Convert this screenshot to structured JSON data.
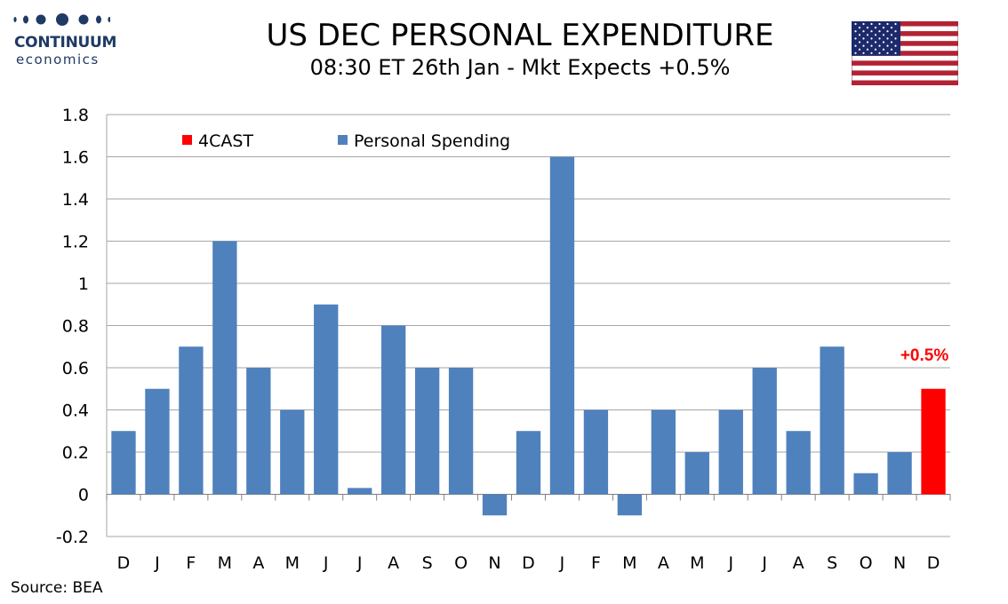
{
  "logo": {
    "name": "CONTINUUM",
    "sub": "economics"
  },
  "header": {
    "title": "US DEC PERSONAL EXPENDITURE",
    "subtitle": "08:30 ET 26th Jan - Mkt Expects +0.5%"
  },
  "flag": {
    "icon": "us-flag-icon"
  },
  "footer": {
    "source": "Source: BEA"
  },
  "colors": {
    "series": "#4f81bd",
    "forecast": "#ff0000",
    "grid": "#a6a6a6",
    "brand": "#1f3a64"
  },
  "chart_data": {
    "type": "bar",
    "title": "US DEC PERSONAL EXPENDITURE",
    "xlabel": "",
    "ylabel": "",
    "ylim": [
      -0.2,
      1.8
    ],
    "yticks": [
      "1.8",
      "1.6",
      "1.4",
      "1.2",
      "1",
      "0.8",
      "0.6",
      "0.4",
      "0.2",
      "0",
      "-0.2"
    ],
    "grid": true,
    "legend_position": "top-left",
    "categories": [
      "D",
      "J",
      "F",
      "M",
      "A",
      "M",
      "J",
      "J",
      "A",
      "S",
      "O",
      "N",
      "D",
      "J",
      "F",
      "M",
      "A",
      "M",
      "J",
      "J",
      "A",
      "S",
      "O",
      "N",
      "D"
    ],
    "series": [
      {
        "name": "Personal Spending",
        "color": "#4f81bd",
        "values": [
          0.3,
          0.5,
          0.7,
          1.2,
          0.6,
          0.4,
          0.9,
          0.03,
          0.8,
          0.6,
          0.6,
          -0.1,
          0.3,
          1.6,
          0.4,
          -0.1,
          0.4,
          0.2,
          0.4,
          0.6,
          0.3,
          0.7,
          0.1,
          0.2,
          null
        ]
      },
      {
        "name": "4CAST",
        "color": "#ff0000",
        "values": [
          null,
          null,
          null,
          null,
          null,
          null,
          null,
          null,
          null,
          null,
          null,
          null,
          null,
          null,
          null,
          null,
          null,
          null,
          null,
          null,
          null,
          null,
          null,
          null,
          0.5
        ]
      }
    ],
    "legend": [
      {
        "name": "4CAST",
        "color": "#ff0000"
      },
      {
        "name": "Personal Spending",
        "color": "#4f81bd"
      }
    ],
    "annotations": [
      {
        "text": "+0.5%",
        "category_index": 24,
        "value": 0.5,
        "color": "#ff0000"
      }
    ]
  }
}
